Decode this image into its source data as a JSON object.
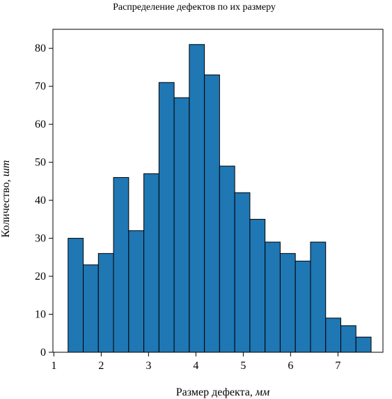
{
  "chart_data": {
    "type": "bar",
    "title": "Распределение дефектов по их размеру",
    "xlabel": "Размер дефекта,",
    "xlabel_unit": "мм",
    "ylabel": "Количество,",
    "ylabel_unit": "шт",
    "xlim": [
      0.98,
      7.95
    ],
    "ylim": [
      0,
      85
    ],
    "xticks": [
      "1",
      "2",
      "3",
      "4",
      "5",
      "6",
      "7"
    ],
    "yticks": [
      "0",
      "10",
      "20",
      "30",
      "40",
      "50",
      "60",
      "70",
      "80"
    ],
    "bin_edges": [
      1.3,
      1.62,
      1.94,
      2.26,
      2.58,
      2.9,
      3.22,
      3.54,
      3.86,
      4.18,
      4.5,
      4.82,
      5.14,
      5.46,
      5.78,
      6.1,
      6.42,
      6.74,
      7.06,
      7.38,
      7.7
    ],
    "values": [
      30,
      23,
      26,
      46,
      32,
      47,
      71,
      67,
      81,
      73,
      49,
      42,
      35,
      29,
      26,
      24,
      29,
      9,
      7,
      4
    ],
    "bar_color": "#1f77b4",
    "edge_color": "#000000",
    "grid": false,
    "legend": "none"
  }
}
